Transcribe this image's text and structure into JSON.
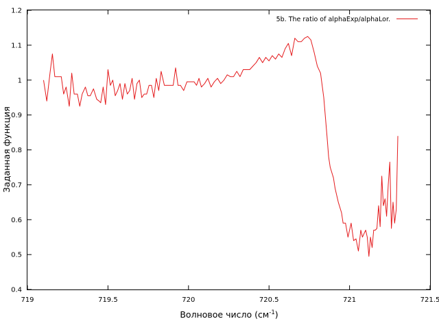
{
  "chart_data": {
    "type": "line",
    "title": "",
    "xlabel": "Волновое число (см",
    "xlabel_superscript": "-1",
    "xlabel_suffix": ")",
    "ylabel": "Заданная функция",
    "xlim": [
      719,
      721.5
    ],
    "ylim": [
      0.4,
      1.2
    ],
    "x_ticks": [
      719,
      719.5,
      720,
      720.5,
      721,
      721.5
    ],
    "x_tick_labels": [
      "719",
      "719.5",
      "720",
      "720.5",
      "721",
      "721.5"
    ],
    "y_ticks": [
      0.4,
      0.5,
      0.6,
      0.7,
      0.8,
      0.9,
      1.0,
      1.1,
      1.2
    ],
    "y_tick_labels": [
      "0.4",
      "0.5",
      "0.6",
      "0.7",
      "0.8",
      "0.9",
      "1",
      "1.1",
      "1.2"
    ],
    "grid": false,
    "legend_position": "top-right",
    "series": [
      {
        "name": "5b. The ratio of alphaExp/alphaLor.",
        "color": "#e41a1c",
        "x": [
          719.1,
          719.12,
          719.14,
          719.155,
          719.17,
          719.19,
          719.21,
          719.225,
          719.24,
          719.26,
          719.275,
          719.29,
          719.31,
          719.325,
          719.34,
          719.36,
          719.375,
          719.39,
          719.41,
          719.43,
          719.445,
          719.455,
          719.47,
          719.485,
          719.5,
          719.515,
          719.53,
          719.545,
          719.56,
          719.575,
          719.59,
          719.605,
          719.62,
          719.635,
          719.65,
          719.665,
          719.68,
          719.695,
          719.71,
          719.725,
          719.74,
          719.755,
          719.77,
          719.785,
          719.8,
          719.815,
          719.83,
          719.85,
          719.87,
          719.89,
          719.905,
          719.92,
          719.935,
          719.95,
          719.97,
          719.99,
          720.01,
          720.02,
          720.035,
          720.05,
          720.065,
          720.08,
          720.1,
          720.12,
          720.14,
          720.16,
          720.18,
          720.2,
          720.22,
          720.24,
          720.26,
          720.28,
          720.3,
          720.32,
          720.34,
          720.36,
          720.38,
          720.4,
          720.42,
          720.44,
          720.46,
          720.48,
          720.5,
          720.52,
          720.54,
          720.56,
          720.58,
          720.6,
          720.62,
          720.64,
          720.66,
          720.68,
          720.7,
          720.72,
          720.74,
          720.76,
          720.78,
          720.8,
          720.82,
          720.84,
          720.86,
          720.87,
          720.88,
          720.9,
          720.91,
          720.93,
          720.95,
          720.96,
          720.975,
          720.99,
          721.0,
          721.01,
          721.025,
          721.04,
          721.055,
          721.07,
          721.08,
          721.09,
          721.1,
          721.11,
          721.12,
          721.13,
          721.14,
          721.15,
          721.16,
          721.17,
          721.18,
          721.19,
          721.2,
          721.21,
          721.22,
          721.23,
          721.24,
          721.25,
          721.26,
          721.27,
          721.28,
          721.29,
          721.3
        ],
        "y": [
          1.0,
          0.94,
          1.02,
          1.075,
          1.01,
          1.01,
          1.01,
          0.96,
          0.98,
          0.925,
          1.02,
          0.96,
          0.96,
          0.925,
          0.96,
          0.98,
          0.955,
          0.955,
          0.975,
          0.945,
          0.94,
          0.935,
          0.98,
          0.93,
          1.03,
          0.985,
          1.0,
          0.955,
          0.97,
          0.99,
          0.945,
          0.99,
          0.96,
          0.97,
          1.005,
          0.945,
          0.99,
          1.0,
          0.95,
          0.96,
          0.96,
          0.985,
          0.985,
          0.95,
          1.005,
          0.97,
          1.025,
          0.985,
          0.985,
          0.985,
          0.985,
          1.035,
          0.985,
          0.985,
          0.97,
          0.995,
          0.995,
          0.995,
          0.995,
          0.985,
          1.005,
          0.98,
          0.99,
          1.005,
          0.98,
          0.995,
          1.005,
          0.99,
          1.0,
          1.015,
          1.01,
          1.01,
          1.025,
          1.01,
          1.03,
          1.03,
          1.03,
          1.04,
          1.05,
          1.065,
          1.05,
          1.065,
          1.055,
          1.07,
          1.06,
          1.075,
          1.065,
          1.09,
          1.105,
          1.07,
          1.12,
          1.11,
          1.11,
          1.12,
          1.125,
          1.115,
          1.08,
          1.04,
          1.02,
          0.95,
          0.84,
          0.78,
          0.75,
          0.72,
          0.69,
          0.65,
          0.62,
          0.59,
          0.59,
          0.55,
          0.57,
          0.59,
          0.54,
          0.545,
          0.51,
          0.57,
          0.55,
          0.56,
          0.57,
          0.55,
          0.495,
          0.55,
          0.52,
          0.57,
          0.57,
          0.575,
          0.64,
          0.58,
          0.725,
          0.64,
          0.66,
          0.61,
          0.7,
          0.765,
          0.575,
          0.65,
          0.59,
          0.63,
          0.84
        ]
      }
    ]
  }
}
